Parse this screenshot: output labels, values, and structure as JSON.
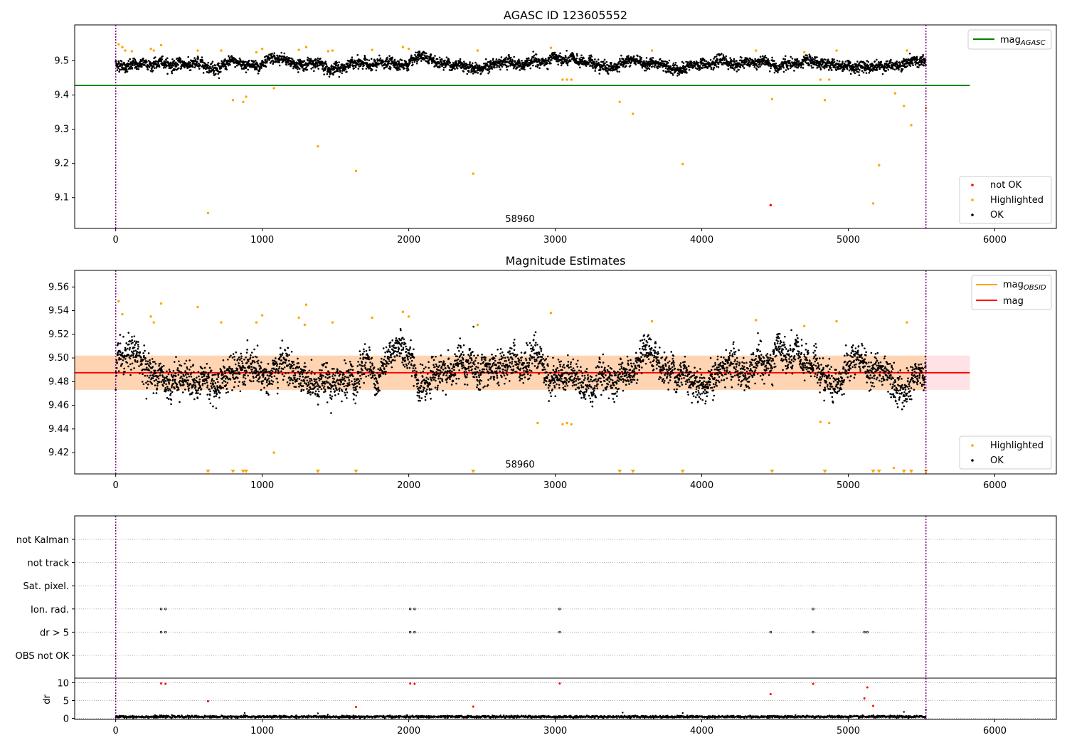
{
  "chart_data": [
    {
      "type": "scatter",
      "title": "AGASC ID 123605552",
      "xlabel": "",
      "ylabel": "",
      "xlim": [
        -280,
        6420
      ],
      "ylim": [
        9.01,
        9.605
      ],
      "yticks": [
        9.1,
        9.2,
        9.3,
        9.4,
        9.5
      ],
      "xticks": [
        0,
        1000,
        2000,
        3000,
        4000,
        5000,
        6000
      ],
      "ytick_labels": [
        "9.1",
        "9.2",
        "9.3",
        "9.4",
        "9.5"
      ],
      "xtick_labels": [
        "0",
        "1000",
        "2000",
        "3000",
        "4000",
        "5000",
        "6000"
      ],
      "annotation": "58960",
      "vlines": [
        0,
        5530
      ],
      "hline": {
        "name": "mag_AGASC",
        "value": 9.428,
        "color": "#008000"
      },
      "legend_lines": [
        {
          "label": "mag",
          "sub": "AGASC",
          "color": "#008000"
        }
      ],
      "legend_points": [
        {
          "label": "not OK",
          "color": "#ff0000"
        },
        {
          "label": "Highlighted",
          "color": "#ffa500"
        },
        {
          "label": "OK",
          "color": "#000000"
        }
      ],
      "series": [
        {
          "name": "OK",
          "color": "#000000",
          "generated": "ok_cloud",
          "x_range": [
            0,
            5530
          ],
          "y_center": 9.49,
          "y_spread": 0.014
        },
        {
          "name": "Highlighted",
          "color": "#ffa500",
          "points": [
            [
              20,
              9.548
            ],
            [
              45,
              9.54
            ],
            [
              65,
              9.53
            ],
            [
              110,
              9.528
            ],
            [
              240,
              9.535
            ],
            [
              260,
              9.53
            ],
            [
              310,
              9.546
            ],
            [
              560,
              9.53
            ],
            [
              630,
              9.055
            ],
            [
              720,
              9.53
            ],
            [
              800,
              9.385
            ],
            [
              870,
              9.38
            ],
            [
              890,
              9.395
            ],
            [
              960,
              9.525
            ],
            [
              1000,
              9.535
            ],
            [
              1080,
              9.42
            ],
            [
              1250,
              9.532
            ],
            [
              1300,
              9.54
            ],
            [
              1380,
              9.25
            ],
            [
              1450,
              9.528
            ],
            [
              1480,
              9.53
            ],
            [
              1640,
              9.178
            ],
            [
              1750,
              9.532
            ],
            [
              1960,
              9.54
            ],
            [
              2000,
              9.535
            ],
            [
              2440,
              9.17
            ],
            [
              2470,
              9.53
            ],
            [
              2970,
              9.538
            ],
            [
              3050,
              9.445
            ],
            [
              3080,
              9.445
            ],
            [
              3110,
              9.445
            ],
            [
              3440,
              9.38
            ],
            [
              3530,
              9.345
            ],
            [
              3660,
              9.53
            ],
            [
              3870,
              9.198
            ],
            [
              4370,
              9.53
            ],
            [
              4480,
              9.388
            ],
            [
              4700,
              9.525
            ],
            [
              4810,
              9.445
            ],
            [
              4840,
              9.385
            ],
            [
              4870,
              9.445
            ],
            [
              4920,
              9.53
            ],
            [
              5170,
              9.083
            ],
            [
              5210,
              9.195
            ],
            [
              5320,
              9.405
            ],
            [
              5380,
              9.368
            ],
            [
              5400,
              9.53
            ],
            [
              5430,
              9.312
            ],
            [
              5530,
              9.362
            ]
          ]
        },
        {
          "name": "not OK",
          "color": "#ff0000",
          "points": [
            [
              4470,
              9.078
            ]
          ]
        }
      ]
    },
    {
      "type": "scatter",
      "title": "Magnitude Estimates",
      "xlabel": "",
      "ylabel": "",
      "xlim": [
        -280,
        6420
      ],
      "ylim": [
        9.402,
        9.574
      ],
      "yticks": [
        9.42,
        9.44,
        9.46,
        9.48,
        9.5,
        9.52,
        9.54,
        9.56
      ],
      "xticks": [
        0,
        1000,
        2000,
        3000,
        4000,
        5000,
        6000
      ],
      "ytick_labels": [
        "9.42",
        "9.44",
        "9.46",
        "9.48",
        "9.50",
        "9.52",
        "9.54",
        "9.56"
      ],
      "xtick_labels": [
        "0",
        "1000",
        "2000",
        "3000",
        "4000",
        "5000",
        "6000"
      ],
      "annotation": "58960",
      "vlines": [
        0,
        5530
      ],
      "hline": {
        "name": "mag",
        "value": 9.4875,
        "color": "#ff0000"
      },
      "bands": [
        {
          "y0": 9.473,
          "y1": 9.502,
          "color": "#ffb6c1",
          "x_end": 5830
        },
        {
          "y0": 9.473,
          "y1": 9.502,
          "color": "#ffa500",
          "x_end": 5530
        }
      ],
      "legend_lines": [
        {
          "label": "mag",
          "sub": "OBSID",
          "color": "#ffa500"
        },
        {
          "label": "mag",
          "sub": "",
          "color": "#ff0000"
        }
      ],
      "legend_points": [
        {
          "label": "Highlighted",
          "color": "#ffa500"
        },
        {
          "label": "OK",
          "color": "#000000"
        }
      ],
      "series": [
        {
          "name": "OK",
          "color": "#000000",
          "generated": "ok_cloud",
          "x_range": [
            0,
            5530
          ],
          "y_center": 9.488,
          "y_spread": 0.012
        },
        {
          "name": "Highlighted",
          "color": "#ffa500",
          "points": [
            [
              20,
              9.548
            ],
            [
              45,
              9.537
            ],
            [
              240,
              9.535
            ],
            [
              260,
              9.53
            ],
            [
              310,
              9.546
            ],
            [
              560,
              9.543
            ],
            [
              720,
              9.53
            ],
            [
              960,
              9.53
            ],
            [
              1000,
              9.536
            ],
            [
              1080,
              9.42
            ],
            [
              1250,
              9.534
            ],
            [
              1290,
              9.528
            ],
            [
              1300,
              9.545
            ],
            [
              1480,
              9.53
            ],
            [
              1750,
              9.534
            ],
            [
              1960,
              9.539
            ],
            [
              2000,
              9.535
            ],
            [
              2470,
              9.528
            ],
            [
              2970,
              9.538
            ],
            [
              2880,
              9.445
            ],
            [
              3050,
              9.444
            ],
            [
              3080,
              9.445
            ],
            [
              3110,
              9.444
            ],
            [
              3660,
              9.531
            ],
            [
              4370,
              9.532
            ],
            [
              4700,
              9.527
            ],
            [
              4810,
              9.446
            ],
            [
              4870,
              9.445
            ],
            [
              4920,
              9.531
            ],
            [
              5310,
              9.407
            ],
            [
              5400,
              9.53
            ]
          ]
        }
      ],
      "lower_markers": {
        "color": "#ffa500",
        "x": [
          630,
          800,
          870,
          890,
          1380,
          1640,
          2440,
          3440,
          3530,
          3870,
          4480,
          4840,
          5170,
          5210,
          5380,
          5430,
          5530
        ]
      }
    },
    {
      "type": "scatter",
      "title": "",
      "xlabel": "",
      "ylabel": "dr",
      "xlim": [
        -280,
        6420
      ],
      "xticks": [
        0,
        1000,
        2000,
        3000,
        4000,
        5000,
        6000
      ],
      "xtick_labels": [
        "0",
        "1000",
        "2000",
        "3000",
        "4000",
        "5000",
        "6000"
      ],
      "vlines": [
        0,
        5530
      ],
      "categories": [
        "OBS not OK",
        "dr > 5",
        "Ion. rad.",
        "Sat. pixel.",
        "not track",
        "not Kalman"
      ],
      "category_points": {
        "Ion. rad.": [
          310,
          340,
          2010,
          2040,
          3030,
          4760
        ],
        "dr > 5": [
          310,
          340,
          2010,
          2040,
          3030,
          4470,
          4760,
          5110,
          5130
        ]
      },
      "dr_ylim": [
        -0.3,
        11.3
      ],
      "dr_yticks": [
        0,
        5,
        10
      ],
      "dr_ytick_labels": [
        "0",
        "5",
        "10"
      ],
      "dr_red_points": [
        [
          310,
          9.8
        ],
        [
          340,
          9.7
        ],
        [
          2010,
          9.8
        ],
        [
          2040,
          9.7
        ],
        [
          3030,
          9.8
        ],
        [
          630,
          4.8
        ],
        [
          1640,
          3.2
        ],
        [
          2440,
          3.3
        ],
        [
          4470,
          6.8
        ],
        [
          4760,
          9.7
        ],
        [
          5110,
          5.6
        ],
        [
          5130,
          8.7
        ],
        [
          5170,
          3.5
        ]
      ],
      "dr_black_points": {
        "generated": "dr_cloud",
        "x_range": [
          0,
          5530
        ],
        "y_center": 0.45,
        "y_spread": 0.25,
        "extra": [
          [
            880,
            1.5
          ],
          [
            1380,
            1.4
          ],
          [
            3460,
            1.6
          ],
          [
            3870,
            1.5
          ],
          [
            5380,
            1.8
          ],
          [
            5530,
            2.4
          ]
        ]
      }
    }
  ]
}
